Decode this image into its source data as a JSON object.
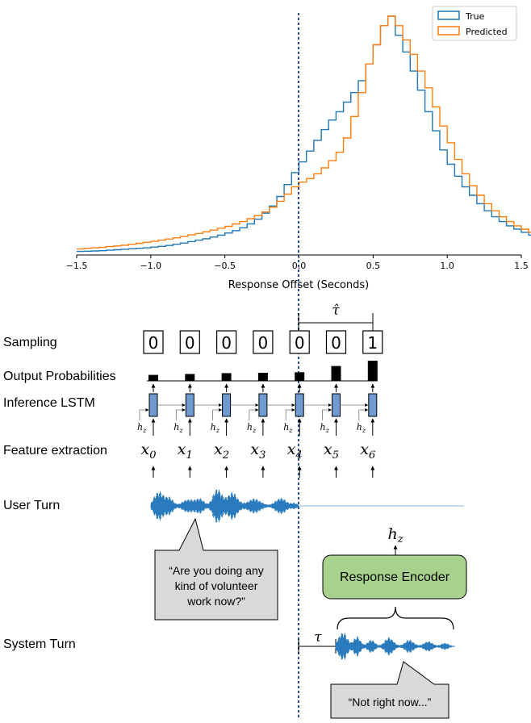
{
  "chart_data": {
    "type": "histogram",
    "xlabel": "Response Offset (Seconds)",
    "xlim": [
      -1.5,
      1.5
    ],
    "xticks": [
      "−1.5",
      "−1.0",
      "−0.5",
      "0.0",
      "0.5",
      "1.0",
      "1.5"
    ],
    "xtick_values": [
      -1.5,
      -1.0,
      -0.5,
      0.0,
      0.5,
      1.0,
      1.5
    ],
    "ylim": [
      0,
      1
    ],
    "legend_position": "top-right",
    "bin_width": 0.05,
    "bin_start": -1.5,
    "series": [
      {
        "name": "True",
        "color": "#1f77b4",
        "values": [
          0.015,
          0.016,
          0.017,
          0.018,
          0.02,
          0.022,
          0.024,
          0.026,
          0.028,
          0.03,
          0.033,
          0.036,
          0.04,
          0.045,
          0.05,
          0.056,
          0.062,
          0.068,
          0.075,
          0.083,
          0.092,
          0.102,
          0.114,
          0.13,
          0.15,
          0.175,
          0.205,
          0.245,
          0.295,
          0.345,
          0.39,
          0.435,
          0.48,
          0.525,
          0.565,
          0.6,
          0.64,
          0.68,
          0.73,
          0.8,
          0.88,
          0.96,
          1.0,
          0.92,
          0.85,
          0.77,
          0.69,
          0.6,
          0.52,
          0.44,
          0.38,
          0.33,
          0.285,
          0.25,
          0.215,
          0.185,
          0.16,
          0.14,
          0.122,
          0.108,
          0.095,
          0.083,
          0.073,
          0.064,
          0.056,
          0.05,
          0.044,
          0.039,
          0.034,
          0.03,
          0.026,
          0.023,
          0.02,
          0.018,
          0.016,
          0.014,
          0.012,
          0.011,
          0.01,
          0.009
        ]
      },
      {
        "name": "Predicted",
        "color": "#ff7f0e",
        "values": [
          0.025,
          0.028,
          0.03,
          0.032,
          0.035,
          0.038,
          0.041,
          0.045,
          0.049,
          0.053,
          0.057,
          0.062,
          0.067,
          0.072,
          0.078,
          0.084,
          0.09,
          0.097,
          0.104,
          0.112,
          0.12,
          0.13,
          0.14,
          0.152,
          0.165,
          0.18,
          0.2,
          0.225,
          0.255,
          0.285,
          0.305,
          0.32,
          0.34,
          0.365,
          0.395,
          0.43,
          0.49,
          0.58,
          0.68,
          0.8,
          0.88,
          0.96,
          1.0,
          0.96,
          0.9,
          0.84,
          0.77,
          0.7,
          0.62,
          0.54,
          0.47,
          0.4,
          0.34,
          0.29,
          0.25,
          0.215,
          0.185,
          0.16,
          0.14,
          0.122,
          0.108,
          0.095,
          0.083,
          0.073,
          0.064,
          0.056,
          0.05,
          0.044,
          0.039,
          0.034,
          0.03,
          0.027,
          0.024,
          0.021,
          0.019,
          0.017,
          0.015,
          0.013,
          0.012,
          0.011
        ]
      }
    ]
  },
  "diagram": {
    "row_labels": {
      "sampling": "Sampling",
      "output_probabilities": "Output Probabilities",
      "inference_lstm": "Inference LSTM",
      "feature_extraction": "Feature extraction",
      "user_turn": "User Turn",
      "system_turn": "System Turn"
    },
    "tau_hat_label": "τ̂",
    "samples": [
      "0",
      "0",
      "0",
      "0",
      "0",
      "0",
      "1"
    ],
    "output_probabilities": [
      0.2,
      0.25,
      0.3,
      0.32,
      0.35,
      0.7,
      1.0
    ],
    "features": [
      {
        "base": "x",
        "sub": "0"
      },
      {
        "base": "x",
        "sub": "1"
      },
      {
        "base": "x",
        "sub": "2"
      },
      {
        "base": "x",
        "sub": "3"
      },
      {
        "base": "x",
        "sub": "4"
      },
      {
        "base": "x",
        "sub": "5"
      },
      {
        "base": "x",
        "sub": "6"
      }
    ],
    "hz": {
      "base": "h",
      "sub": "z"
    },
    "user_utterance_lines": [
      "“Are you doing any",
      "kind of volunteer",
      "work now?”"
    ],
    "response_encoder_label": "Response Encoder",
    "tau_label": "τ",
    "system_utterance": "“Not right now...”",
    "colors": {
      "lstm_cell": "#6f9bd1",
      "waveform": "#2a7bbd",
      "encoder_fill": "#a9d18e",
      "bubble_fill": "#d9d9d9",
      "dashed_line": "#2b4a9b"
    }
  }
}
